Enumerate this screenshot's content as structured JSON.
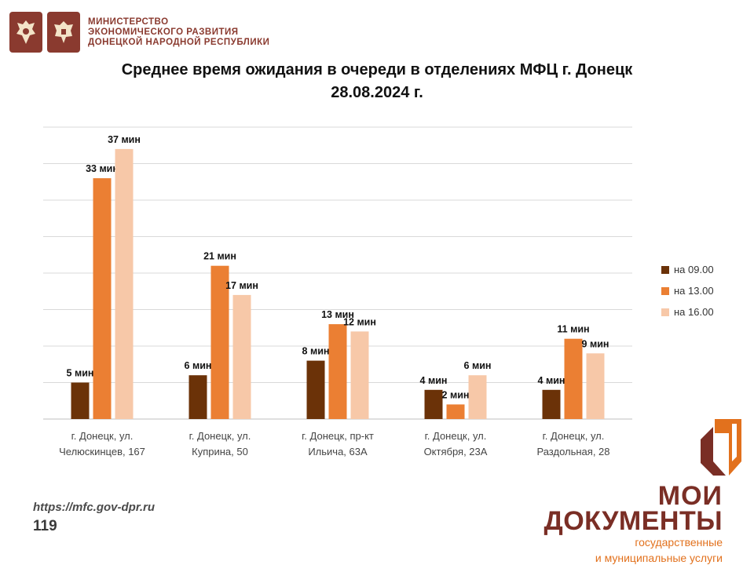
{
  "header": {
    "ministry_lines": [
      "МИНИСТЕРСТВО",
      "ЭКОНОМИЧЕСКОГО РАЗВИТИЯ",
      "ДОНЕЦКОЙ НАРОДНОЙ РЕСПУБЛИКИ"
    ],
    "emblem_icons": [
      "russia-emblem-icon",
      "dpr-emblem-icon"
    ],
    "brand_color": "#8a3a2f"
  },
  "footer": {
    "url": "https://mfc.gov-dpr.ru",
    "page_number": "119",
    "logo_line1": "МОИ",
    "logo_line2": "ДОКУМЕНТЫ",
    "logo_sub1": "государственные",
    "logo_sub2": "и муниципальные услуги",
    "logo_icon": "moi-dokumenty-logo-icon"
  },
  "chart_data": {
    "type": "bar",
    "title_lines": [
      "Среднее время ожидания в очереди в отделениях МФЦ г. Донецк",
      "28.08.2024 г."
    ],
    "categories": [
      [
        "г. Донецк, ул.",
        "Челюскинцев, 167"
      ],
      [
        "г. Донецк, ул.",
        "Куприна, 50"
      ],
      [
        "г. Донецк, пр-кт",
        "Ильича, 63А"
      ],
      [
        "г. Донецк, ул.",
        "Октября, 23А"
      ],
      [
        "г. Донецк, ул.",
        "Раздольная, 28"
      ]
    ],
    "series": [
      {
        "name": "на 09.00",
        "color": "#6b3208",
        "values": [
          5,
          6,
          8,
          4,
          4
        ],
        "labels": [
          "5 мин",
          "6 мин",
          "8 мин",
          "4 мин",
          "4 мин"
        ]
      },
      {
        "name": "на 13.00",
        "color": "#eb7f33",
        "values": [
          33,
          21,
          13,
          2,
          11
        ],
        "labels": [
          "33 мин",
          "21 мин",
          "13 мин",
          "2 мин",
          "11 мин"
        ]
      },
      {
        "name": "на 16.00",
        "color": "#f7c8a8",
        "values": [
          37,
          17,
          12,
          6,
          9
        ],
        "labels": [
          "37 мин",
          "17 мин",
          "12 мин",
          "6 мин",
          "9 мин"
        ]
      }
    ],
    "ylim": [
      0,
      40
    ],
    "gridlines": true,
    "legend_position": "right"
  }
}
